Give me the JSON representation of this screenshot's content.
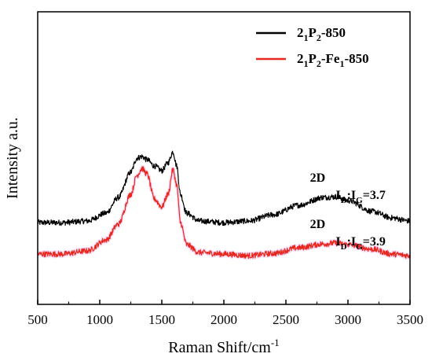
{
  "chart_data": {
    "type": "line",
    "xlabel": "Raman Shift/cm",
    "xlabel_sup": "-1",
    "ylabel": "Intensity a.u.",
    "xlim": [
      500,
      3500
    ],
    "xticks": [
      "500",
      "1000",
      "1500",
      "2000",
      "2500",
      "3000",
      "3500"
    ],
    "yticks_shown": false,
    "legend_position": "top-right",
    "series": [
      {
        "name": "2₁P₂-850",
        "name_parts": [
          [
            "2",
            "n"
          ],
          [
            "1",
            "sub"
          ],
          [
            "P",
            "n"
          ],
          [
            "2",
            "sub"
          ],
          [
            "-850",
            "n"
          ]
        ],
        "color": "#000000",
        "noise": 0.09,
        "points": [
          [
            500,
            1.0
          ],
          [
            700,
            1.0
          ],
          [
            900,
            1.05
          ],
          [
            1050,
            1.3
          ],
          [
            1150,
            1.8
          ],
          [
            1250,
            2.6
          ],
          [
            1300,
            3.05
          ],
          [
            1340,
            3.1
          ],
          [
            1380,
            3.0
          ],
          [
            1440,
            2.8
          ],
          [
            1500,
            2.65
          ],
          [
            1550,
            2.9
          ],
          [
            1590,
            3.25
          ],
          [
            1620,
            2.8
          ],
          [
            1650,
            1.9
          ],
          [
            1700,
            1.3
          ],
          [
            1800,
            1.05
          ],
          [
            2000,
            1.0
          ],
          [
            2200,
            1.05
          ],
          [
            2400,
            1.25
          ],
          [
            2600,
            1.55
          ],
          [
            2800,
            1.8
          ],
          [
            2900,
            1.82
          ],
          [
            3000,
            1.7
          ],
          [
            3200,
            1.35
          ],
          [
            3350,
            1.15
          ],
          [
            3500,
            1.05
          ]
        ]
      },
      {
        "name": "2₁P₂-Fe₁-850",
        "name_parts": [
          [
            "2",
            "n"
          ],
          [
            "1",
            "sub"
          ],
          [
            "P",
            "n"
          ],
          [
            "2",
            "sub"
          ],
          [
            "-Fe",
            "n"
          ],
          [
            "1",
            "sub"
          ],
          [
            "-850",
            "n"
          ]
        ],
        "color": "#e8281e",
        "noise": 0.09,
        "points": [
          [
            500,
            0.0
          ],
          [
            700,
            0.0
          ],
          [
            900,
            0.1
          ],
          [
            1050,
            0.45
          ],
          [
            1150,
            0.95
          ],
          [
            1250,
            1.9
          ],
          [
            1300,
            2.5
          ],
          [
            1340,
            2.72
          ],
          [
            1380,
            2.55
          ],
          [
            1440,
            1.75
          ],
          [
            1500,
            1.5
          ],
          [
            1550,
            1.9
          ],
          [
            1590,
            2.68
          ],
          [
            1620,
            2.2
          ],
          [
            1650,
            1.0
          ],
          [
            1700,
            0.3
          ],
          [
            1800,
            0.05
          ],
          [
            2000,
            0.0
          ],
          [
            2200,
            -0.05
          ],
          [
            2400,
            0.02
          ],
          [
            2600,
            0.2
          ],
          [
            2800,
            0.32
          ],
          [
            2900,
            0.35
          ],
          [
            3000,
            0.3
          ],
          [
            3200,
            0.15
          ],
          [
            3350,
            0.0
          ],
          [
            3500,
            -0.05
          ]
        ]
      }
    ],
    "annotations": [
      {
        "label": "2D",
        "ratio": {
          "parts": [
            [
              "I",
              "n"
            ],
            [
              "D",
              "sub"
            ],
            [
              ":I",
              "n"
            ],
            [
              "G",
              "sub"
            ],
            [
              "=3.7",
              "n"
            ]
          ]
        },
        "x": 2800,
        "y": 2.05
      },
      {
        "label": "2D",
        "ratio": {
          "parts": [
            [
              "I",
              "n"
            ],
            [
              "D",
              "sub"
            ],
            [
              ":I",
              "n"
            ],
            [
              "G",
              "sub"
            ],
            [
              "=3.9",
              "n"
            ]
          ]
        },
        "x": 2800,
        "y": 0.58
      }
    ]
  }
}
